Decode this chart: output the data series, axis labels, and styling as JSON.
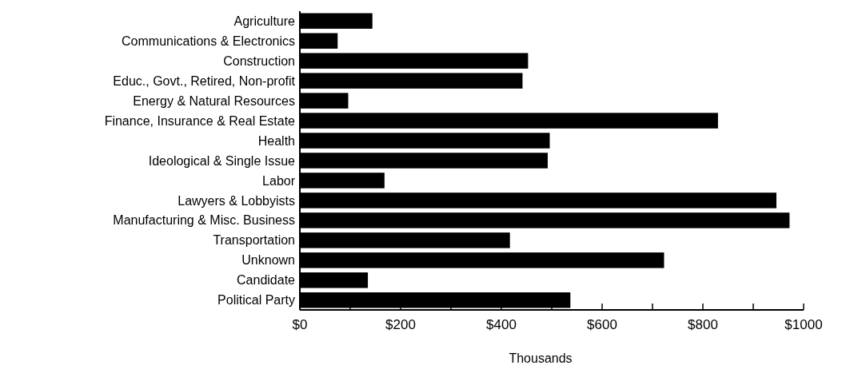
{
  "chart_data": {
    "type": "bar",
    "orientation": "horizontal",
    "xlabel": "Thousands",
    "categories": [
      "Agriculture",
      "Communications & Electronics",
      "Construction",
      "Educ., Govt., Retired, Non-profit",
      "Energy & Natural Resources",
      "Finance, Insurance & Real Estate",
      "Health",
      "Ideological & Single Issue",
      "Labor",
      "Lawyers & Lobbyists",
      "Manufacturing & Misc. Business",
      "Transportation",
      "Unknown",
      "Candidate",
      "Political Party"
    ],
    "values": [
      144,
      75,
      453,
      442,
      96,
      830,
      496,
      492,
      168,
      946,
      972,
      417,
      723,
      135,
      537
    ],
    "color": "#000000",
    "xlim": [
      0,
      1000
    ],
    "xticks": [
      {
        "value": 0,
        "label": "$0"
      },
      {
        "value": 100,
        "label": null
      },
      {
        "value": 200,
        "label": "$200"
      },
      {
        "value": 300,
        "label": null
      },
      {
        "value": 400,
        "label": "$400"
      },
      {
        "value": 500,
        "label": null
      },
      {
        "value": 600,
        "label": "$600"
      },
      {
        "value": 700,
        "label": null
      },
      {
        "value": 800,
        "label": "$800"
      },
      {
        "value": 900,
        "label": null
      },
      {
        "value": 1000,
        "label": "$1000"
      }
    ],
    "grid": false
  }
}
